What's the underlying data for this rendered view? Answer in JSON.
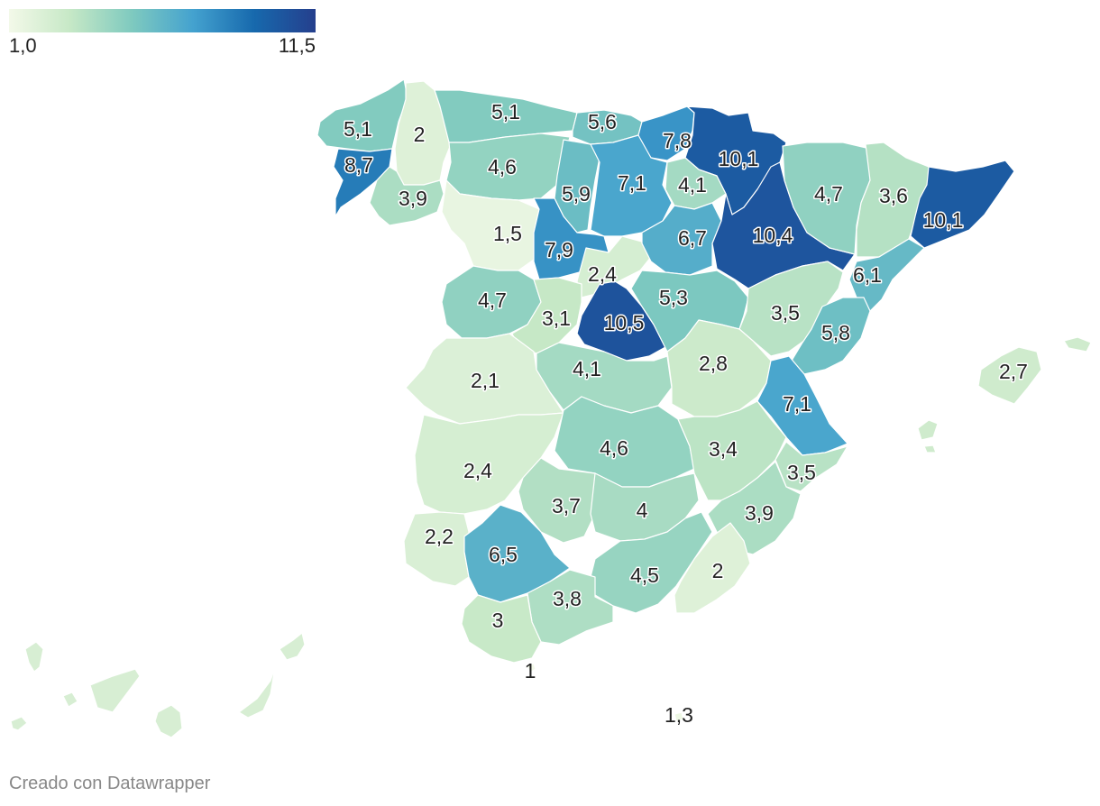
{
  "legend": {
    "min_label": "1,0",
    "max_label": "11,5",
    "min": 1.0,
    "max": 11.5
  },
  "credit": "Creado con Datawrapper",
  "scale_colors": [
    "#f3f9e9",
    "#c6e8c6",
    "#7fcabf",
    "#44a2cf",
    "#1769ad",
    "#253f8d"
  ],
  "regions": [
    {
      "label": "5,1",
      "value": 5.1
    },
    {
      "label": "2",
      "value": 2.0
    },
    {
      "label": "8,7",
      "value": 8.7
    },
    {
      "label": "3,9",
      "value": 3.9
    },
    {
      "label": "5,1",
      "value": 5.1
    },
    {
      "label": "5,6",
      "value": 5.6
    },
    {
      "label": "7,8",
      "value": 7.8
    },
    {
      "label": "10,1",
      "value": 10.1
    },
    {
      "label": "4,6",
      "value": 4.6
    },
    {
      "label": "5,9",
      "value": 5.9
    },
    {
      "label": "7,1",
      "value": 7.1
    },
    {
      "label": "4,1",
      "value": 4.1
    },
    {
      "label": "1,5",
      "value": 1.5
    },
    {
      "label": "7,9",
      "value": 7.9
    },
    {
      "label": "2,4",
      "value": 2.4
    },
    {
      "label": "6,7",
      "value": 6.7
    },
    {
      "label": "10,4",
      "value": 10.4
    },
    {
      "label": "4,7",
      "value": 4.7
    },
    {
      "label": "3,6",
      "value": 3.6
    },
    {
      "label": "10,1",
      "value": 10.1
    },
    {
      "label": "6,1",
      "value": 6.1
    },
    {
      "label": "4,7",
      "value": 4.7
    },
    {
      "label": "3,1",
      "value": 3.1
    },
    {
      "label": "10,5",
      "value": 10.5
    },
    {
      "label": "5,3",
      "value": 5.3
    },
    {
      "label": "3,5",
      "value": 3.5
    },
    {
      "label": "5,8",
      "value": 5.8
    },
    {
      "label": "2,1",
      "value": 2.1
    },
    {
      "label": "4,1",
      "value": 4.1
    },
    {
      "label": "2,8",
      "value": 2.8
    },
    {
      "label": "7,1",
      "value": 7.1
    },
    {
      "label": "2,7",
      "value": 2.7
    },
    {
      "label": "2,4",
      "value": 2.4
    },
    {
      "label": "4,6",
      "value": 4.6
    },
    {
      "label": "3,4",
      "value": 3.4
    },
    {
      "label": "3,5",
      "value": 3.5
    },
    {
      "label": "2,2",
      "value": 2.2
    },
    {
      "label": "3,7",
      "value": 3.7
    },
    {
      "label": "4",
      "value": 4.0
    },
    {
      "label": "3,9",
      "value": 3.9
    },
    {
      "label": "6,5",
      "value": 6.5
    },
    {
      "label": "4,5",
      "value": 4.5
    },
    {
      "label": "2",
      "value": 2.0
    },
    {
      "label": "3,8",
      "value": 3.8
    },
    {
      "label": "3",
      "value": 3.0
    },
    {
      "label": "1",
      "value": 1.0
    },
    {
      "label": "1,3",
      "value": 1.3
    }
  ],
  "islands": [
    {
      "value": 2.3
    },
    {
      "value": 2.3
    },
    {
      "value": 2.3
    },
    {
      "value": 2.3
    },
    {
      "value": 2.3
    },
    {
      "value": 2.3
    },
    {
      "value": 2.3
    },
    {
      "value": 2.7
    },
    {
      "value": 2.7
    },
    {
      "value": 2.7
    }
  ]
}
